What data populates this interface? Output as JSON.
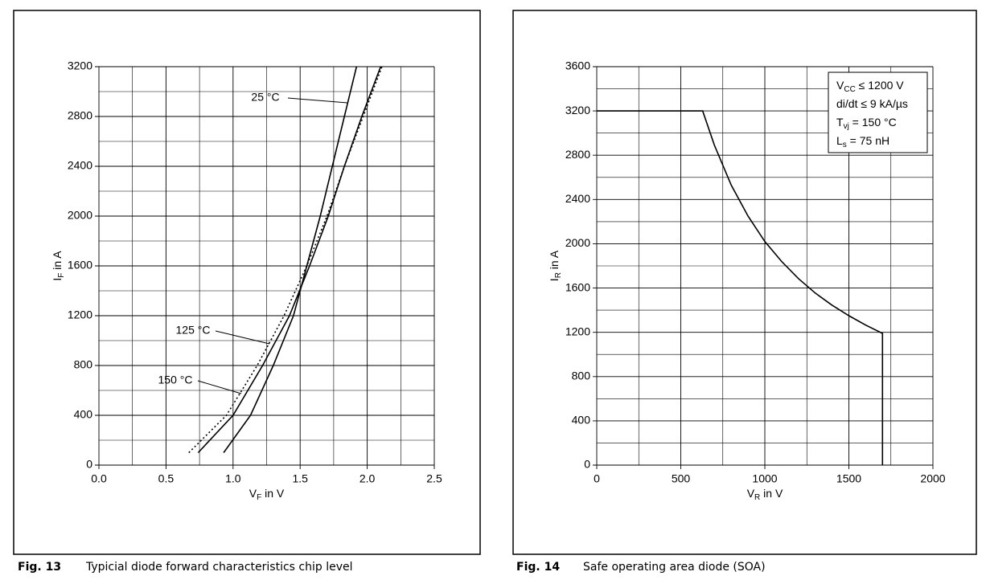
{
  "chart_data": [
    {
      "type": "line",
      "caption": {
        "fig": "Fig. 13",
        "text": "Typicial diode forward characteristics chip level"
      },
      "xlabel": [
        "V",
        "F",
        " in V"
      ],
      "ylabel": [
        "I",
        "F",
        " in A"
      ],
      "xlim": [
        0,
        2.5
      ],
      "ylim": [
        0,
        3200
      ],
      "xticks": [
        {
          "value": 0,
          "label": "0.0"
        },
        0.5,
        {
          "value": 1,
          "label": "1.0"
        },
        1.5,
        {
          "value": 2,
          "label": "2.0"
        },
        2.5
      ],
      "yticks": [
        0,
        400,
        800,
        1200,
        1600,
        2000,
        2400,
        2800,
        3200
      ],
      "minor_xticks": [
        0.25,
        0.75,
        1.25,
        1.75,
        2.25
      ],
      "minor_yticks": [
        200,
        600,
        1000,
        1400,
        1800,
        2200,
        2600,
        3000
      ],
      "grid": true,
      "series": [
        {
          "name": "25 °C",
          "color": "#000000",
          "dash": false,
          "x": [
            0.93,
            1.13,
            1.3,
            1.45,
            1.55,
            1.65,
            1.74,
            1.83,
            1.92
          ],
          "values": [
            100,
            400,
            800,
            1200,
            1600,
            2000,
            2400,
            2800,
            3200
          ]
        },
        {
          "name": "125 °C",
          "color": "#000000",
          "dash": false,
          "x": [
            0.74,
            1.0,
            1.22,
            1.42,
            1.57,
            1.71,
            1.83,
            1.96,
            2.1
          ],
          "values": [
            100,
            400,
            800,
            1200,
            1600,
            2000,
            2400,
            2800,
            3200
          ]
        },
        {
          "name": "150 °C",
          "color": "#000000",
          "dash": true,
          "x": [
            0.67,
            0.95,
            1.18,
            1.38,
            1.55,
            1.7,
            1.83,
            1.97,
            2.11
          ],
          "values": [
            100,
            400,
            800,
            1200,
            1600,
            2000,
            2400,
            2800,
            3200
          ]
        }
      ]
    },
    {
      "type": "line",
      "caption": {
        "fig": "Fig. 14",
        "text": "Safe operating area diode (SOA)"
      },
      "xlabel": [
        "V",
        "R",
        " in V"
      ],
      "ylabel": [
        "I",
        "R",
        " in A"
      ],
      "xlim": [
        0,
        2000
      ],
      "ylim": [
        0,
        3600
      ],
      "xticks": [
        0,
        500,
        1000,
        1500,
        2000
      ],
      "yticks": [
        0,
        400,
        800,
        1200,
        1600,
        2000,
        2400,
        2800,
        3200,
        3600
      ],
      "minor_xticks": [
        250,
        750,
        1250,
        1750
      ],
      "minor_yticks": [
        200,
        600,
        1000,
        1400,
        1800,
        2200,
        2600,
        3000,
        3400
      ],
      "grid": true,
      "notes": [
        [
          "V",
          "CC",
          " ≤ 1200 V"
        ],
        [
          "di/dt ≤ 9 kA/µs"
        ],
        [
          "T",
          "vj",
          " = 150 °C"
        ],
        [
          "L",
          "s",
          " = 75 nH"
        ]
      ],
      "series": [
        {
          "color": "#000000",
          "dash": false,
          "x": [
            0,
            630,
            700,
            800,
            900,
            1000,
            1100,
            1200,
            1300,
            1400,
            1500,
            1600,
            1700,
            1700
          ],
          "values": [
            3200,
            3200,
            2890,
            2530,
            2250,
            2020,
            1840,
            1685,
            1555,
            1445,
            1350,
            1265,
            1190,
            0
          ]
        }
      ]
    }
  ]
}
